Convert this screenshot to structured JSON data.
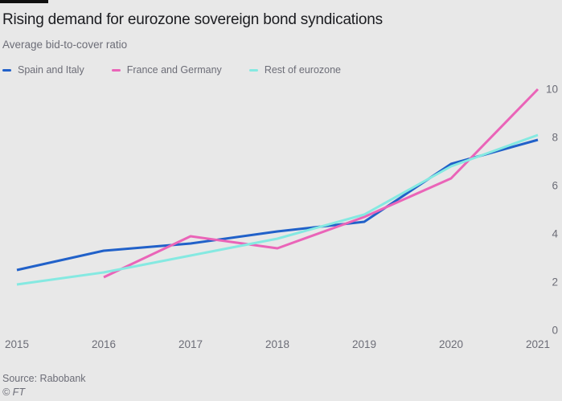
{
  "header": {
    "title": "Rising demand for eurozone sovereign bond syndications",
    "subtitle": "Average bid-to-cover ratio"
  },
  "legend": {
    "items": [
      {
        "label": "Spain and Italy"
      },
      {
        "label": "France and Germany"
      },
      {
        "label": "Rest of eurozone"
      }
    ]
  },
  "chart_data": {
    "type": "line",
    "title": "Rising demand for eurozone sovereign bond syndications",
    "subtitle": "Average bid-to-cover ratio",
    "xlabel": "",
    "ylabel": "",
    "x": [
      2015,
      2016,
      2017,
      2018,
      2019,
      2020,
      2021
    ],
    "x_tick_labels": [
      "2015",
      "2016",
      "2017",
      "2018",
      "2019",
      "2020",
      "2021"
    ],
    "series": [
      {
        "name": "Spain and Italy",
        "color": "#2161c9",
        "values": [
          2.5,
          3.3,
          3.6,
          4.1,
          4.5,
          6.9,
          7.9
        ]
      },
      {
        "name": "France and Germany",
        "color": "#ea64b8",
        "values": [
          null,
          2.2,
          3.9,
          3.4,
          4.7,
          6.3,
          10.0
        ]
      },
      {
        "name": "Rest of eurozone",
        "color": "#85e9e1",
        "values": [
          1.9,
          2.4,
          3.1,
          3.8,
          4.8,
          6.8,
          8.1
        ]
      }
    ],
    "ylim": [
      0,
      10
    ],
    "y_ticks": [
      0,
      2,
      4,
      6,
      8,
      10
    ],
    "y_tick_side": "right",
    "grid": false,
    "legend_position": "top"
  },
  "source": "Source: Rabobank",
  "footer": "© FT",
  "colors": {
    "background": "#e8e8e8",
    "top_bar": "#101010",
    "title_text": "#1b1c20",
    "secondary_text": "#6c6d77"
  }
}
